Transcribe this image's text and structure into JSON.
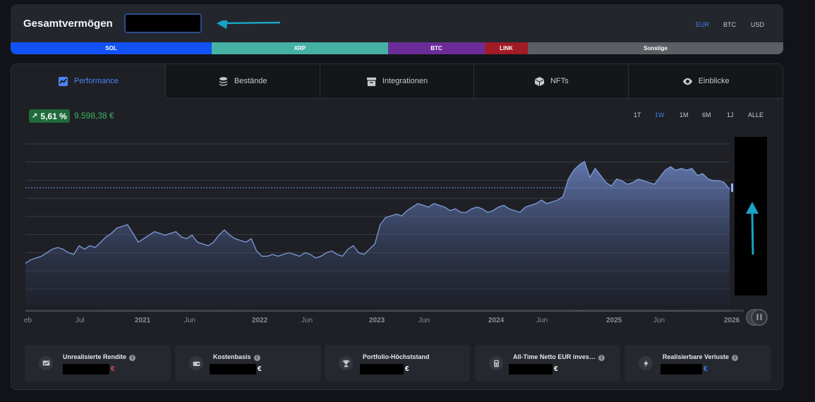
{
  "header": {
    "title": "Gesamtvermögen",
    "currencies": [
      "EUR",
      "BTC",
      "USD"
    ],
    "active_currency": "EUR"
  },
  "allocation": [
    {
      "label": "SOL",
      "color": "#1151f5",
      "share": 26
    },
    {
      "label": "XRP",
      "color": "#45b1a4",
      "share": 23
    },
    {
      "label": "BTC",
      "color": "#6b2c99",
      "share": 12.5
    },
    {
      "label": "LINK",
      "color": "#a11b25",
      "share": 5.5
    },
    {
      "label": "Sonstige",
      "color": "#5c5e64",
      "share": 33
    }
  ],
  "tabs": [
    {
      "label": "Performance",
      "icon": "chart-icon",
      "active": true
    },
    {
      "label": "Bestände",
      "icon": "coins-icon",
      "active": false
    },
    {
      "label": "Integrationen",
      "icon": "box-icon",
      "active": false
    },
    {
      "label": "NFTs",
      "icon": "cube-icon",
      "active": false
    },
    {
      "label": "Einblicke",
      "icon": "eye-icon",
      "active": false
    }
  ],
  "performance": {
    "change_pct": "5,61 %",
    "change_abs": "9.598,38 €",
    "ranges": [
      "1T",
      "1W",
      "1M",
      "6M",
      "1J",
      "ALLE"
    ],
    "active_range": "1W"
  },
  "chart_data": {
    "type": "area",
    "x_tick_labels": [
      "eb",
      "Jul",
      "2021",
      "Jun",
      "2022",
      "Jun",
      "2023",
      "Jun",
      "2024",
      "Jun",
      "2025",
      "Jun",
      "2026"
    ],
    "series": [
      {
        "values": [
          12,
          13,
          13.5,
          14,
          15,
          16,
          16.5,
          16,
          15,
          14.5,
          17,
          16,
          17,
          16.5,
          18,
          19.5,
          20.5,
          22,
          22.5,
          23,
          20.5,
          18,
          19,
          20,
          21,
          20.5,
          20,
          20.5,
          21,
          19.5,
          19,
          20,
          18,
          17.5,
          17,
          18,
          20,
          21.5,
          20,
          19,
          18.5,
          18,
          19,
          15.5,
          14,
          14,
          14.5,
          14,
          14.5,
          15,
          14.5,
          14,
          15,
          14.5,
          13.5,
          14,
          15,
          15.5,
          14.5,
          14,
          16,
          17,
          15,
          14.5,
          16,
          17.5,
          23,
          25,
          25.5,
          26,
          25.5,
          27,
          28,
          29,
          28.5,
          28,
          29,
          28.5,
          28,
          27,
          27.5,
          26.5,
          26.5,
          27.5,
          28,
          27.5,
          26.5,
          27,
          28,
          28.5,
          27.5,
          27,
          26.5,
          28,
          28.5,
          29,
          30,
          29,
          29.5,
          30,
          31,
          36,
          38.5,
          40,
          41,
          36.5,
          39,
          37,
          35,
          34,
          36,
          35.5,
          34.5,
          35,
          36,
          35.5,
          35,
          34.5,
          36.5,
          38.5,
          39.5,
          38.5,
          39,
          38.5,
          39,
          37,
          37.5,
          36,
          35.5,
          35.5,
          35,
          33
        ],
        "color": "#7f9bd8"
      }
    ],
    "reference_line": 33.5,
    "ylim": [
      0,
      46
    ],
    "grid": true,
    "legend": "none"
  },
  "stats": [
    {
      "label": "Unrealisierte Rendite",
      "icon": "chart-icon",
      "currency": "€",
      "currency_color": "#e0484f"
    },
    {
      "label": "Kostenbasis",
      "icon": "wallet-icon",
      "currency": "€",
      "currency_color": "#ffffff"
    },
    {
      "label": "Portfolio-Höchststand",
      "icon": "trophy-icon",
      "currency": "€",
      "currency_color": "#ffffff"
    },
    {
      "label": "All-Time Netto EUR inves…",
      "icon": "calculator-icon",
      "currency": "€",
      "currency_color": "#ffffff"
    },
    {
      "label": "Realisierbare Verluste",
      "icon": "bolt-icon",
      "currency": "€",
      "currency_color": "#3f7df2"
    }
  ]
}
